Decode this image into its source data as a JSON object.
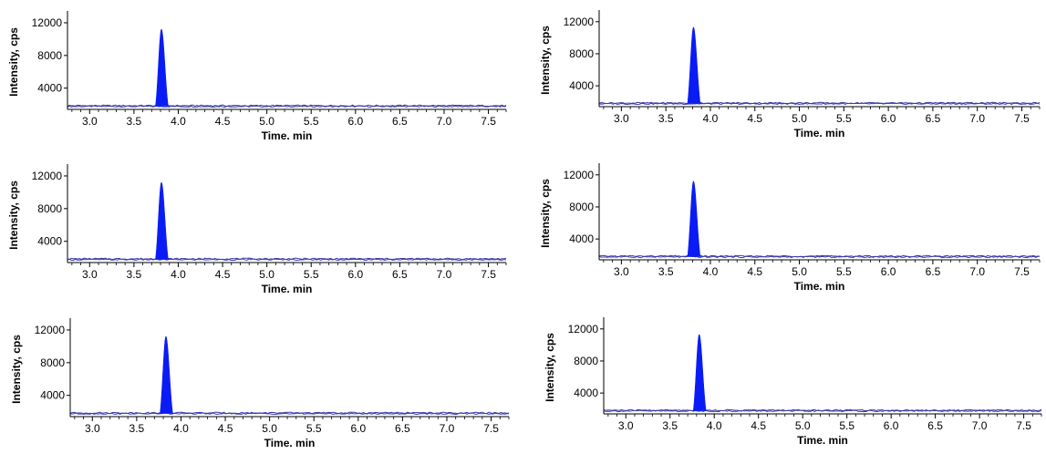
{
  "colors": {
    "peak_fill": "#0a1cf5",
    "baseline": "#3c3ca8",
    "axis": "#000000"
  },
  "chart_data": [
    {
      "type": "area",
      "xlabel": "Time. min",
      "ylabel": "Intensity, cps",
      "xlim": [
        2.75,
        7.7
      ],
      "ylim": [
        1400,
        13000
      ],
      "x_ticks": [
        "3.0",
        "3.5",
        "4.0",
        "4.5",
        "5.0",
        "5.5",
        "6.0",
        "6.5",
        "7.0",
        "7.5"
      ],
      "y_ticks": [
        "4000",
        "8000",
        "12000"
      ],
      "baseline_intensity": 1800,
      "peak": {
        "retention_time": 3.81,
        "height": 11200,
        "width_min": 0.09
      }
    },
    {
      "type": "area",
      "xlabel": "Time. min",
      "ylabel": "Intensity, cps",
      "xlim": [
        2.75,
        7.7
      ],
      "ylim": [
        1400,
        13000
      ],
      "x_ticks": [
        "3.0",
        "3.5",
        "4.0",
        "4.5",
        "5.0",
        "5.5",
        "6.0",
        "6.5",
        "7.0",
        "7.5"
      ],
      "y_ticks": [
        "4000",
        "8000",
        "12000"
      ],
      "baseline_intensity": 1800,
      "peak": {
        "retention_time": 3.81,
        "height": 11300,
        "width_min": 0.09
      }
    },
    {
      "type": "area",
      "xlabel": "Time. min",
      "ylabel": "Intensity, cps",
      "xlim": [
        2.75,
        7.7
      ],
      "ylim": [
        1400,
        13000
      ],
      "x_ticks": [
        "3.0",
        "3.5",
        "4.0",
        "4.5",
        "5.0",
        "5.5",
        "6.0",
        "6.5",
        "7.0",
        "7.5"
      ],
      "y_ticks": [
        "4000",
        "8000",
        "12000"
      ],
      "baseline_intensity": 1800,
      "peak": {
        "retention_time": 3.81,
        "height": 11200,
        "width_min": 0.09
      }
    },
    {
      "type": "area",
      "xlabel": "Time. min",
      "ylabel": "Intensity, cps",
      "xlim": [
        2.75,
        7.7
      ],
      "ylim": [
        1400,
        13000
      ],
      "x_ticks": [
        "3.0",
        "3.5",
        "4.0",
        "4.5",
        "5.0",
        "5.5",
        "6.0",
        "6.5",
        "7.0",
        "7.5"
      ],
      "y_ticks": [
        "4000",
        "8000",
        "12000"
      ],
      "baseline_intensity": 1800,
      "peak": {
        "retention_time": 3.81,
        "height": 11200,
        "width_min": 0.09
      }
    },
    {
      "type": "area",
      "xlabel": "Time. min",
      "ylabel": "Intensity, cps",
      "xlim": [
        2.75,
        7.7
      ],
      "ylim": [
        1400,
        13000
      ],
      "x_ticks": [
        "3.0",
        "3.5",
        "4.0",
        "4.5",
        "5.0",
        "5.5",
        "6.0",
        "6.5",
        "7.0",
        "7.5"
      ],
      "y_ticks": [
        "4000",
        "8000",
        "12000"
      ],
      "baseline_intensity": 1800,
      "peak": {
        "retention_time": 3.83,
        "height": 11200,
        "width_min": 0.09
      }
    },
    {
      "type": "area",
      "xlabel": "Time. min",
      "ylabel": "Intensity, cps",
      "xlim": [
        2.75,
        7.7
      ],
      "ylim": [
        1400,
        13000
      ],
      "x_ticks": [
        "3.0",
        "3.5",
        "4.0",
        "4.5",
        "5.0",
        "5.5",
        "6.0",
        "6.5",
        "7.0",
        "7.5"
      ],
      "y_ticks": [
        "4000",
        "8000",
        "12000"
      ],
      "baseline_intensity": 1800,
      "peak": {
        "retention_time": 3.83,
        "height": 11300,
        "width_min": 0.09
      }
    }
  ]
}
